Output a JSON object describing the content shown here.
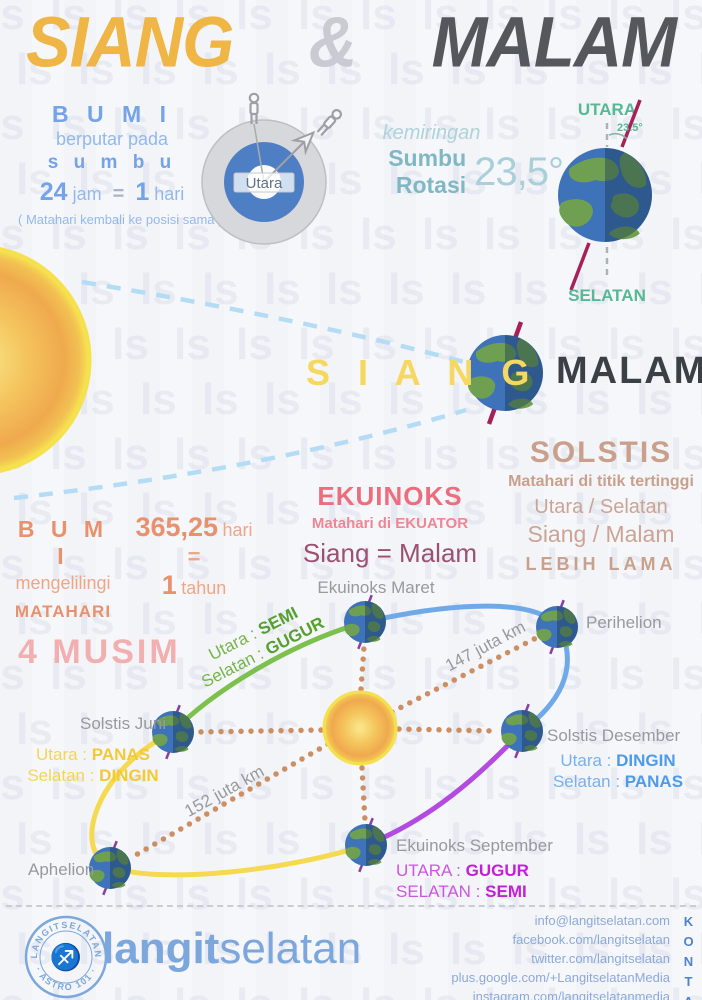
{
  "watermark": {
    "char": "ls"
  },
  "title": {
    "siang": "SIANG",
    "amp": "&",
    "malam": "MALAM"
  },
  "rotation": {
    "bumi": "B U M I",
    "berputar": "berputar pada",
    "sumbu": "s u m b u",
    "h24": "24",
    "jam": "jam",
    "eq": "=",
    "one": "1",
    "hari": "hari",
    "note": "( Matahari kembali ke posisi sama )",
    "utara": "Utara"
  },
  "tilt": {
    "kemiringan": "kemiringan",
    "sumbu": "Sumbu",
    "rotasi": "Rotasi",
    "angle": "23,5°",
    "angle_small": "23.5°",
    "utara": "UTARA",
    "selatan": "SELATAN"
  },
  "day_night": {
    "siang": "S I A N G",
    "malam": "MALAM"
  },
  "solstis": {
    "title": "SOLSTIS",
    "line1": "Matahari di titik tertinggi",
    "line2": "Utara / Selatan",
    "line3": "Siang / Malam",
    "line4": "LEBIH LAMA"
  },
  "revolution": {
    "bumi": "B U M I",
    "mengelilingi": "mengelilingi",
    "matahari": "MATAHARI",
    "days": "365,25",
    "hari": "hari",
    "eq": "=",
    "one": "1",
    "tahun": "tahun"
  },
  "ekuinoks": {
    "title": "EKUINOKS",
    "line1": "Matahari di EKUATOR",
    "line2": "Siang = Malam"
  },
  "musim": {
    "title": "4 MUSIM"
  },
  "orbit": {
    "maret": "Ekuinoks Maret",
    "perihelion": "Perihelion",
    "desember": "Solstis Desember",
    "september": "Ekuinoks September",
    "juni": "Solstis Juni",
    "aphelion": "Aphelion",
    "d147": "147 juta km",
    "d152": "152 juta km",
    "semi_pre": "Utara :",
    "semi_val": "SEMI",
    "gugur_pre": "Selatan :",
    "gugur_val": "GUGUR",
    "des_north_pre": "Utara :",
    "des_north_val": "DINGIN",
    "des_south_pre": "Selatan :",
    "des_south_val": "PANAS",
    "sep_north_pre": "UTARA :",
    "sep_north_val": "GUGUR",
    "sep_south_pre": "SELATAN :",
    "sep_south_val": "SEMI",
    "jun_north_pre": "Utara :",
    "jun_north_val": "PANAS",
    "jun_south_pre": "Selatan :",
    "jun_south_val": "DINGIN"
  },
  "footer": {
    "stamp_top": "LANGITSELATAN",
    "stamp_bottom": "· ASTRO 101 ·",
    "stamp_glyph": "♐",
    "brand_bold": "langit",
    "brand_light": "selatan",
    "contacts": [
      "info@langitselatan.com",
      "facebook.com/langitselatan",
      "twitter.com/langitselatan",
      "plus.google.com/+LangitselatanMedia",
      "instagram.com/langitselatanmedia"
    ],
    "kontak": "KONTAK"
  }
}
